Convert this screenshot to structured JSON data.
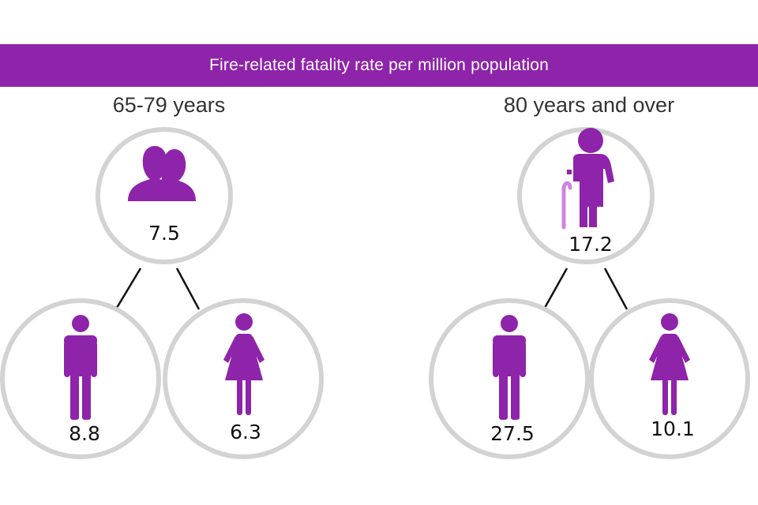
{
  "banner": {
    "title": "Fire-related fatality rate per million population"
  },
  "colors": {
    "accent": "#8e24aa",
    "circle_stroke": "#d3d3d3",
    "connector": "#111111"
  },
  "groups": [
    {
      "label": "65-79 years",
      "overall": {
        "icon": "couple-icon",
        "value": "7.5"
      },
      "male": {
        "icon": "male-icon",
        "value": "8.8"
      },
      "female": {
        "icon": "female-icon",
        "value": "6.3"
      }
    },
    {
      "label": "80 years and over",
      "overall": {
        "icon": "elderly-with-cane-icon",
        "value": "17.2"
      },
      "male": {
        "icon": "male-icon",
        "value": "27.5"
      },
      "female": {
        "icon": "female-icon",
        "value": "10.1"
      }
    }
  ]
}
